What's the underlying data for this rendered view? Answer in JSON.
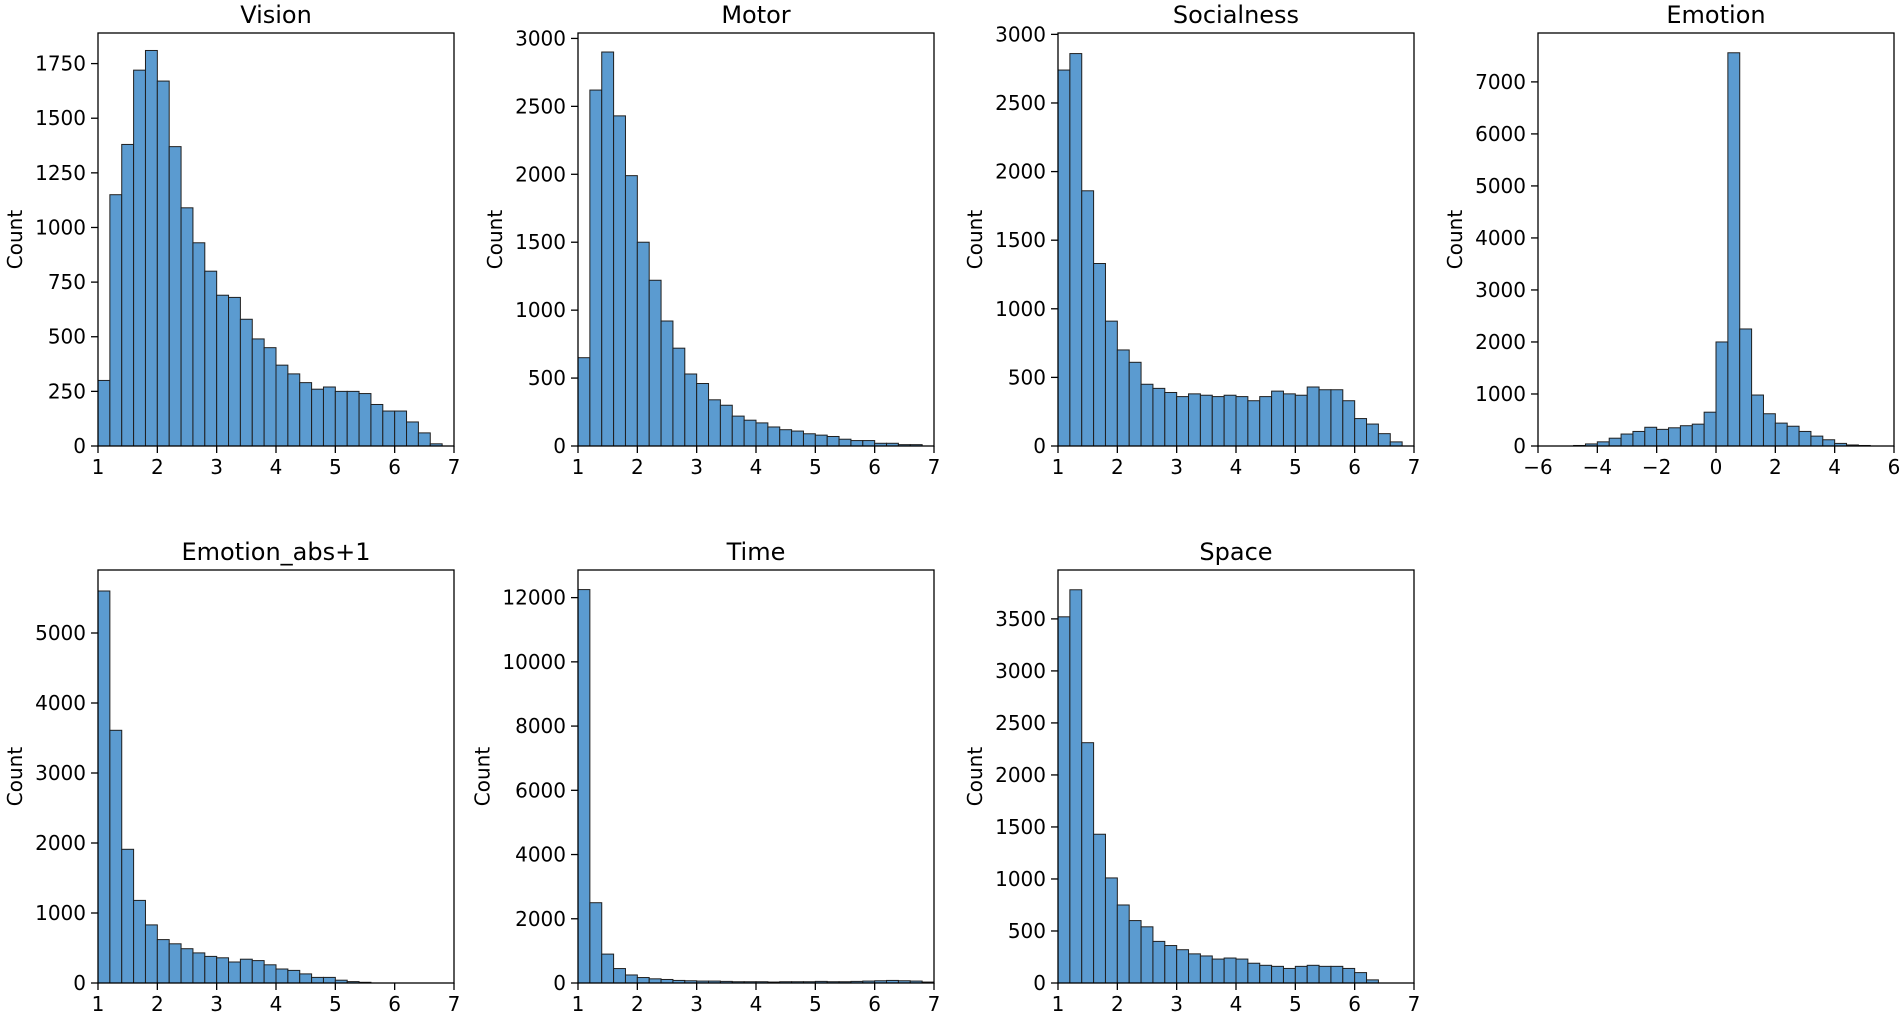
{
  "chart_data": [
    {
      "type": "bar",
      "title": "Vision",
      "xlabel": "",
      "ylabel": "Count",
      "xlim": [
        1,
        7
      ],
      "ylim": [
        0,
        1890
      ],
      "xticks": [
        1,
        2,
        3,
        4,
        5,
        6,
        7
      ],
      "xtick_labels": [
        "1",
        "2",
        "3",
        "4",
        "5",
        "6",
        "7"
      ],
      "yticks": [
        0,
        250,
        500,
        750,
        1000,
        1250,
        1500,
        1750
      ],
      "ytick_labels": [
        "0",
        "250",
        "500",
        "750",
        "1000",
        "1250",
        "1500",
        "1750"
      ],
      "bin_start": 1.0,
      "bin_width": 0.2,
      "values": [
        300,
        1150,
        1380,
        1720,
        1810,
        1670,
        1370,
        1090,
        930,
        800,
        690,
        680,
        580,
        490,
        450,
        370,
        330,
        290,
        260,
        270,
        250,
        250,
        240,
        190,
        160,
        160,
        110,
        60,
        10,
        0
      ]
    },
    {
      "type": "bar",
      "title": "Motor",
      "xlabel": "",
      "ylabel": "Count",
      "xlim": [
        1,
        7
      ],
      "ylim": [
        0,
        3040
      ],
      "xticks": [
        1,
        2,
        3,
        4,
        5,
        6,
        7
      ],
      "xtick_labels": [
        "1",
        "2",
        "3",
        "4",
        "5",
        "6",
        "7"
      ],
      "yticks": [
        0,
        500,
        1000,
        1500,
        2000,
        2500,
        3000
      ],
      "ytick_labels": [
        "0",
        "500",
        "1000",
        "1500",
        "2000",
        "2500",
        "3000"
      ],
      "bin_start": 1.0,
      "bin_width": 0.2,
      "values": [
        650,
        2620,
        2900,
        2430,
        1990,
        1500,
        1220,
        920,
        720,
        530,
        460,
        340,
        300,
        220,
        190,
        170,
        140,
        120,
        110,
        90,
        80,
        70,
        50,
        40,
        40,
        20,
        20,
        10,
        10,
        0
      ]
    },
    {
      "type": "bar",
      "title": "Socialness",
      "xlabel": "",
      "ylabel": "Count",
      "xlim": [
        1,
        7
      ],
      "ylim": [
        0,
        3010
      ],
      "xticks": [
        1,
        2,
        3,
        4,
        5,
        6,
        7
      ],
      "xtick_labels": [
        "1",
        "2",
        "3",
        "4",
        "5",
        "6",
        "7"
      ],
      "yticks": [
        0,
        500,
        1000,
        1500,
        2000,
        2500,
        3000
      ],
      "ytick_labels": [
        "0",
        "500",
        "1000",
        "1500",
        "2000",
        "2500",
        "3000"
      ],
      "bin_start": 1.0,
      "bin_width": 0.2,
      "values": [
        2740,
        2860,
        1860,
        1330,
        910,
        700,
        610,
        450,
        420,
        390,
        360,
        380,
        370,
        360,
        370,
        360,
        330,
        360,
        400,
        380,
        370,
        430,
        410,
        410,
        330,
        200,
        160,
        90,
        30,
        0
      ]
    },
    {
      "type": "bar",
      "title": "Emotion",
      "xlabel": "",
      "ylabel": "Count",
      "xlim": [
        -6,
        6
      ],
      "ylim": [
        0,
        7940
      ],
      "xticks": [
        -6,
        -4,
        -2,
        0,
        2,
        4,
        6
      ],
      "xtick_labels": [
        "−6",
        "−4",
        "−2",
        "0",
        "2",
        "4",
        "6"
      ],
      "yticks": [
        0,
        1000,
        2000,
        3000,
        4000,
        5000,
        6000,
        7000
      ],
      "ytick_labels": [
        "0",
        "1000",
        "2000",
        "3000",
        "4000",
        "5000",
        "6000",
        "7000"
      ],
      "bin_start": -6.0,
      "bin_width": 0.4,
      "values": [
        0,
        0,
        0,
        10,
        40,
        80,
        150,
        230,
        280,
        360,
        320,
        350,
        390,
        420,
        650,
        2000,
        7560,
        2250,
        980,
        620,
        440,
        380,
        280,
        190,
        120,
        50,
        20,
        10,
        0,
        0
      ]
    },
    {
      "type": "bar",
      "title": "Emotion_abs+1",
      "xlabel": "",
      "ylabel": "Count",
      "xlim": [
        1,
        7
      ],
      "ylim": [
        0,
        5900
      ],
      "xticks": [
        1,
        2,
        3,
        4,
        5,
        6,
        7
      ],
      "xtick_labels": [
        "1",
        "2",
        "3",
        "4",
        "5",
        "6",
        "7"
      ],
      "yticks": [
        0,
        1000,
        2000,
        3000,
        4000,
        5000
      ],
      "ytick_labels": [
        "0",
        "1000",
        "2000",
        "3000",
        "4000",
        "5000"
      ],
      "bin_start": 1.0,
      "bin_width": 0.2,
      "values": [
        5600,
        3610,
        1910,
        1180,
        830,
        620,
        560,
        490,
        430,
        380,
        360,
        300,
        340,
        320,
        260,
        200,
        180,
        130,
        80,
        80,
        40,
        20,
        10,
        0,
        0,
        0,
        0,
        0,
        0,
        0
      ]
    },
    {
      "type": "bar",
      "title": "Time",
      "xlabel": "",
      "ylabel": "Count",
      "xlim": [
        1,
        7
      ],
      "ylim": [
        0,
        12860
      ],
      "xticks": [
        1,
        2,
        3,
        4,
        5,
        6,
        7
      ],
      "xtick_labels": [
        "1",
        "2",
        "3",
        "4",
        "5",
        "6",
        "7"
      ],
      "yticks": [
        0,
        2000,
        4000,
        6000,
        8000,
        10000,
        12000
      ],
      "ytick_labels": [
        "0",
        "2000",
        "4000",
        "6000",
        "8000",
        "10000",
        "12000"
      ],
      "bin_start": 1.0,
      "bin_width": 0.2,
      "values": [
        12250,
        2500,
        900,
        450,
        250,
        170,
        130,
        110,
        80,
        70,
        60,
        60,
        50,
        40,
        40,
        40,
        30,
        40,
        40,
        40,
        50,
        40,
        40,
        50,
        60,
        70,
        80,
        70,
        60,
        30
      ]
    },
    {
      "type": "bar",
      "title": "Space",
      "xlabel": "",
      "ylabel": "Count",
      "xlim": [
        1,
        7
      ],
      "ylim": [
        0,
        3970
      ],
      "xticks": [
        1,
        2,
        3,
        4,
        5,
        6,
        7
      ],
      "xtick_labels": [
        "1",
        "2",
        "3",
        "4",
        "5",
        "6",
        "7"
      ],
      "yticks": [
        0,
        500,
        1000,
        1500,
        2000,
        2500,
        3000,
        3500
      ],
      "ytick_labels": [
        "0",
        "500",
        "1000",
        "1500",
        "2000",
        "2500",
        "3000",
        "3500"
      ],
      "bin_start": 1.0,
      "bin_width": 0.2,
      "values": [
        3520,
        3780,
        2310,
        1430,
        1010,
        750,
        600,
        540,
        400,
        360,
        320,
        280,
        260,
        230,
        240,
        230,
        190,
        170,
        160,
        140,
        160,
        170,
        160,
        160,
        140,
        100,
        30,
        0,
        0,
        0
      ]
    }
  ],
  "style": {
    "bar_fill": "#5b9bd0",
    "bar_stroke": "#1f1f1f",
    "axis_color": "#000000",
    "grid": false
  }
}
